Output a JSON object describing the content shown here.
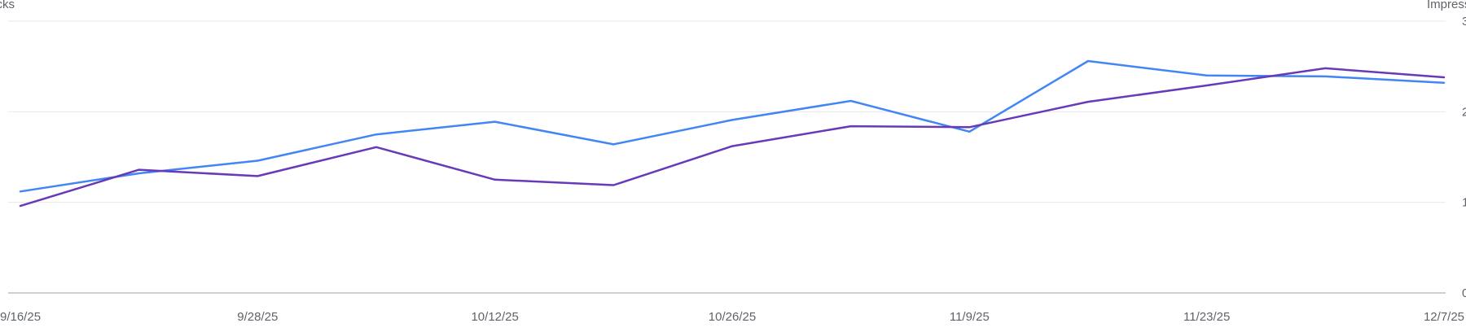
{
  "chart_data": {
    "type": "line",
    "title": "",
    "left_axis": {
      "label": "Clicks",
      "ylim": [
        0,
        3
      ]
    },
    "right_axis": {
      "label": "Impressions",
      "ylim": [
        0,
        3
      ]
    },
    "right_ticks": [
      "0",
      "1",
      "2",
      "3"
    ],
    "grid": true,
    "x": [
      "9/16/25",
      "9/21/25",
      "9/28/25",
      "10/5/25",
      "10/12/25",
      "10/19/25",
      "10/26/25",
      "11/2/25",
      "11/9/25",
      "11/16/25",
      "11/23/25",
      "11/30/25",
      "12/7/25"
    ],
    "x_tick_labels": [
      "9/16/25",
      "9/28/25",
      "10/12/25",
      "10/26/25",
      "11/9/25",
      "11/23/25",
      "12/7/25"
    ],
    "series": [
      {
        "axis": "left",
        "color": "#4285f4",
        "values": [
          1.12,
          1.32,
          1.46,
          1.75,
          1.89,
          1.64,
          1.91,
          2.12,
          1.78,
          2.56,
          2.4,
          2.39,
          2.32
        ]
      },
      {
        "axis": "right",
        "color": "#673ab7",
        "values": [
          0.96,
          1.36,
          1.29,
          1.61,
          1.25,
          1.19,
          1.62,
          1.84,
          1.83,
          2.11,
          2.29,
          2.48,
          2.38
        ]
      }
    ]
  }
}
